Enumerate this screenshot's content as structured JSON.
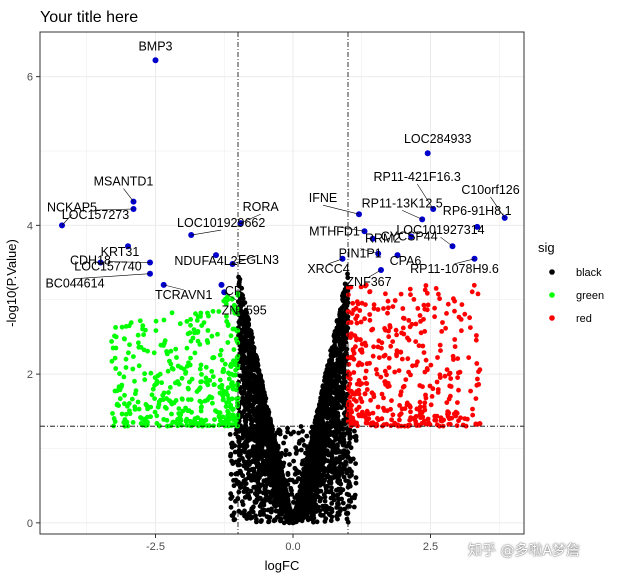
{
  "chart_data": {
    "type": "scatter",
    "title": "Your title here",
    "xlabel": "logFC",
    "ylabel": "-log10(P.Value)",
    "xlim": [
      -4.6,
      4.2
    ],
    "ylim": [
      -0.15,
      6.6
    ],
    "x_ticks": [
      -2.5,
      0.0,
      2.5
    ],
    "x_tick_labels": [
      "-2.5",
      "0.0",
      "2.5"
    ],
    "y_ticks": [
      0,
      2,
      4,
      6
    ],
    "y_tick_labels": [
      "0",
      "2",
      "4",
      "6"
    ],
    "vlines": [
      -1,
      1
    ],
    "hline": 1.3,
    "grid": true,
    "legend": {
      "title": "sig",
      "position": "right",
      "entries": [
        {
          "name": "black",
          "color": "#000000"
        },
        {
          "name": "green",
          "color": "#00ff00"
        },
        {
          "name": "red",
          "color": "#ff0000"
        }
      ]
    },
    "labeled_point_color": "#0000cd",
    "labeled_points": [
      {
        "gene": "BMP3",
        "x": -2.5,
        "y": 6.22
      },
      {
        "gene": "LOC284933",
        "x": 2.45,
        "y": 4.97
      },
      {
        "gene": "NCKAP5",
        "x": -4.2,
        "y": 4.0
      },
      {
        "gene": "MSANTD1",
        "x": -2.9,
        "y": 4.32
      },
      {
        "gene": "LOC157273",
        "x": -2.9,
        "y": 4.22
      },
      {
        "gene": "LOC101929662",
        "x": -1.85,
        "y": 3.87
      },
      {
        "gene": "RORA",
        "x": -0.95,
        "y": 4.03
      },
      {
        "gene": "NDUFA4L2",
        "x": -1.4,
        "y": 3.6
      },
      {
        "gene": "CDH18",
        "x": -3.5,
        "y": 3.5
      },
      {
        "gene": "KRT31",
        "x": -3.0,
        "y": 3.72
      },
      {
        "gene": "EGLN3",
        "x": -1.1,
        "y": 3.48
      },
      {
        "gene": "LOC157740",
        "x": -2.6,
        "y": 3.5
      },
      {
        "gene": "BC044614",
        "x": -2.6,
        "y": 3.35
      },
      {
        "gene": "TCRAVN1",
        "x": -2.35,
        "y": 3.2
      },
      {
        "gene": "CP",
        "x": -1.3,
        "y": 3.2
      },
      {
        "gene": "ZNF595",
        "x": -1.25,
        "y": 3.1
      },
      {
        "gene": "IFNE",
        "x": 1.2,
        "y": 4.15
      },
      {
        "gene": "RP11-421F16.3",
        "x": 2.55,
        "y": 4.22
      },
      {
        "gene": "RP11-13K12.5",
        "x": 2.35,
        "y": 4.08
      },
      {
        "gene": "C10orf126",
        "x": 3.85,
        "y": 4.1
      },
      {
        "gene": "RP6-91H8.1",
        "x": 3.35,
        "y": 3.98
      },
      {
        "gene": "MTHFD1",
        "x": 1.3,
        "y": 3.92
      },
      {
        "gene": "RRM2",
        "x": 1.45,
        "y": 3.82
      },
      {
        "gene": "CYCSP44",
        "x": 2.15,
        "y": 3.85
      },
      {
        "gene": "LOC101927314",
        "x": 2.9,
        "y": 3.72
      },
      {
        "gene": "PIN1P1",
        "x": 1.55,
        "y": 3.62
      },
      {
        "gene": "CPA6",
        "x": 1.9,
        "y": 3.6
      },
      {
        "gene": "ZNF367",
        "x": 1.6,
        "y": 3.4
      },
      {
        "gene": "XRCC4",
        "x": 0.9,
        "y": 3.55
      },
      {
        "gene": "RP11-1078H9.6",
        "x": 3.3,
        "y": 3.55
      }
    ]
  },
  "watermark": "知乎 @多啦A梦詹"
}
